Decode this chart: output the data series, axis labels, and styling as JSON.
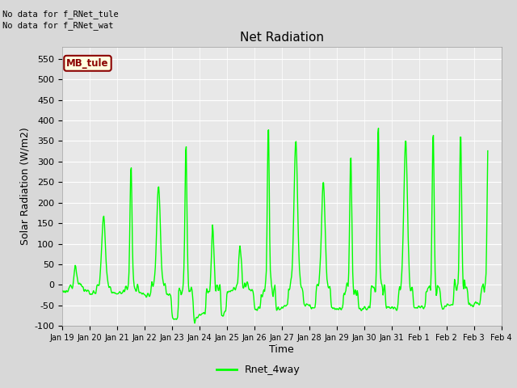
{
  "title": "Net Radiation",
  "xlabel": "Time",
  "ylabel": "Solar Radiation (W/m2)",
  "ylim": [
    -100,
    580
  ],
  "yticks": [
    -100,
    -50,
    0,
    50,
    100,
    150,
    200,
    250,
    300,
    350,
    400,
    450,
    500,
    550
  ],
  "line_color": "#00FF00",
  "line_width": 1.0,
  "bg_color": "#D8D8D8",
  "plot_bg": "#E8E8E8",
  "grid_color": "white",
  "annotation_text1": "No data for f_RNet_tule",
  "annotation_text2": "No data for f_RNet_wat",
  "box_label": "MB_tule",
  "legend_label": "Rnet_4way",
  "title_fontsize": 11,
  "axis_fontsize": 8,
  "legend_fontsize": 9
}
